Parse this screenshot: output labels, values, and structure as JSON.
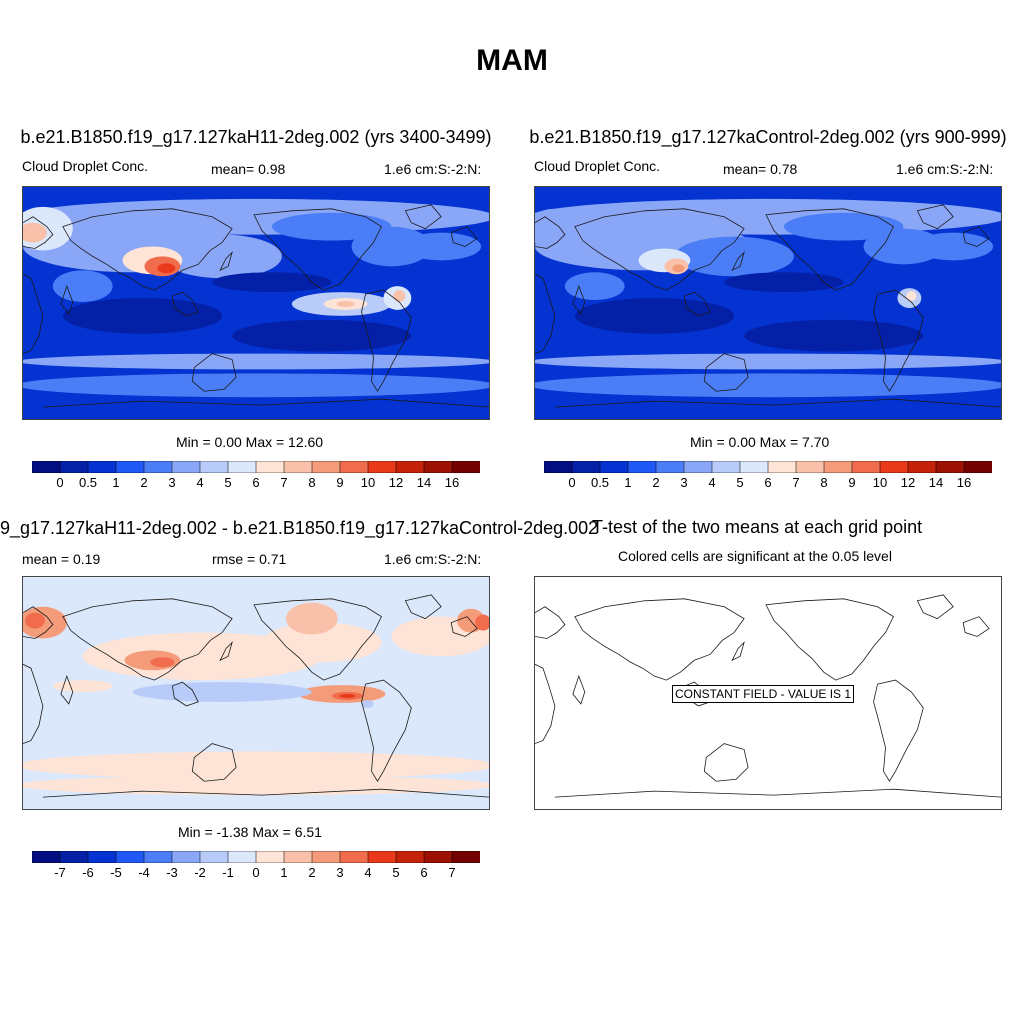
{
  "figure": {
    "title": "MAM",
    "colors": {
      "seq": [
        "#030e80",
        "#0320a6",
        "#0533d1",
        "#1f58f5",
        "#4b7ef6",
        "#8aa7f7",
        "#b8cbf9",
        "#dbe7fb",
        "#fde4d6",
        "#f9c1aa",
        "#f49b7a",
        "#f06c4c",
        "#e83a1a",
        "#c42209",
        "#9c1104",
        "#740000"
      ],
      "diff": [
        "#030e80",
        "#0320a6",
        "#0533d1",
        "#1f58f5",
        "#4b7ef6",
        "#8aa7f7",
        "#b8cbf9",
        "#dbe7fb",
        "#fde4d6",
        "#f9c1aa",
        "#f49b7a",
        "#f06c4c",
        "#e83a1a",
        "#c42209",
        "#9c1104",
        "#740000"
      ]
    }
  },
  "chart_data": [
    {
      "type": "heatmap",
      "id": "test_case",
      "title": "b.e21.B1850.f19_g17.127kaH11-2deg.002 (yrs 3400-3499)",
      "left_label": "Cloud Droplet Conc.",
      "mean_label": "mean=   0.98",
      "units": "1.e6 cm:S:-2:N:",
      "minmax_label": "Min =   0.00 Max =  12.60",
      "mean": 0.98,
      "min": 0.0,
      "max": 12.6,
      "colorbar_levels": [
        "0",
        "0.5",
        "1",
        "2",
        "3",
        "4",
        "5",
        "6",
        "7",
        "8",
        "9",
        "10",
        "12",
        "14",
        "16"
      ]
    },
    {
      "type": "heatmap",
      "id": "control_case",
      "title": "b.e21.B1850.f19_g17.127kaControl-2deg.002 (yrs 900-999)",
      "left_label": "Cloud Droplet Conc.",
      "mean_label": "mean=   0.78",
      "units": "1.e6 cm:S:-2:N:",
      "minmax_label": "Min =   0.00 Max =   7.70",
      "mean": 0.78,
      "min": 0.0,
      "max": 7.7,
      "colorbar_levels": [
        "0",
        "0.5",
        "1",
        "2",
        "3",
        "4",
        "5",
        "6",
        "7",
        "8",
        "9",
        "10",
        "12",
        "14",
        "16"
      ]
    },
    {
      "type": "heatmap",
      "id": "difference",
      "title": "9_g17.127kaH11-2deg.002 - b.e21.B1850.f19_g17.127kaControl-2deg.002",
      "left_label": "mean =   0.19",
      "mean_label": "rmse =   0.71",
      "units": "1.e6 cm:S:-2:N:",
      "minmax_label": "Min =  -1.38 Max =   6.51",
      "mean": 0.19,
      "rmse": 0.71,
      "min": -1.38,
      "max": 6.51,
      "colorbar_levels": [
        "-7",
        "-6",
        "-5",
        "-4",
        "-3",
        "-2",
        "-1",
        "0",
        "1",
        "2",
        "3",
        "4",
        "5",
        "6",
        "7"
      ]
    },
    {
      "type": "heatmap",
      "id": "ttest",
      "title": "T-test of the two means at each grid point",
      "subtitle": "Colored cells are significant at the 0.05 level",
      "constant_label": "CONSTANT FIELD - VALUE IS 1"
    }
  ]
}
